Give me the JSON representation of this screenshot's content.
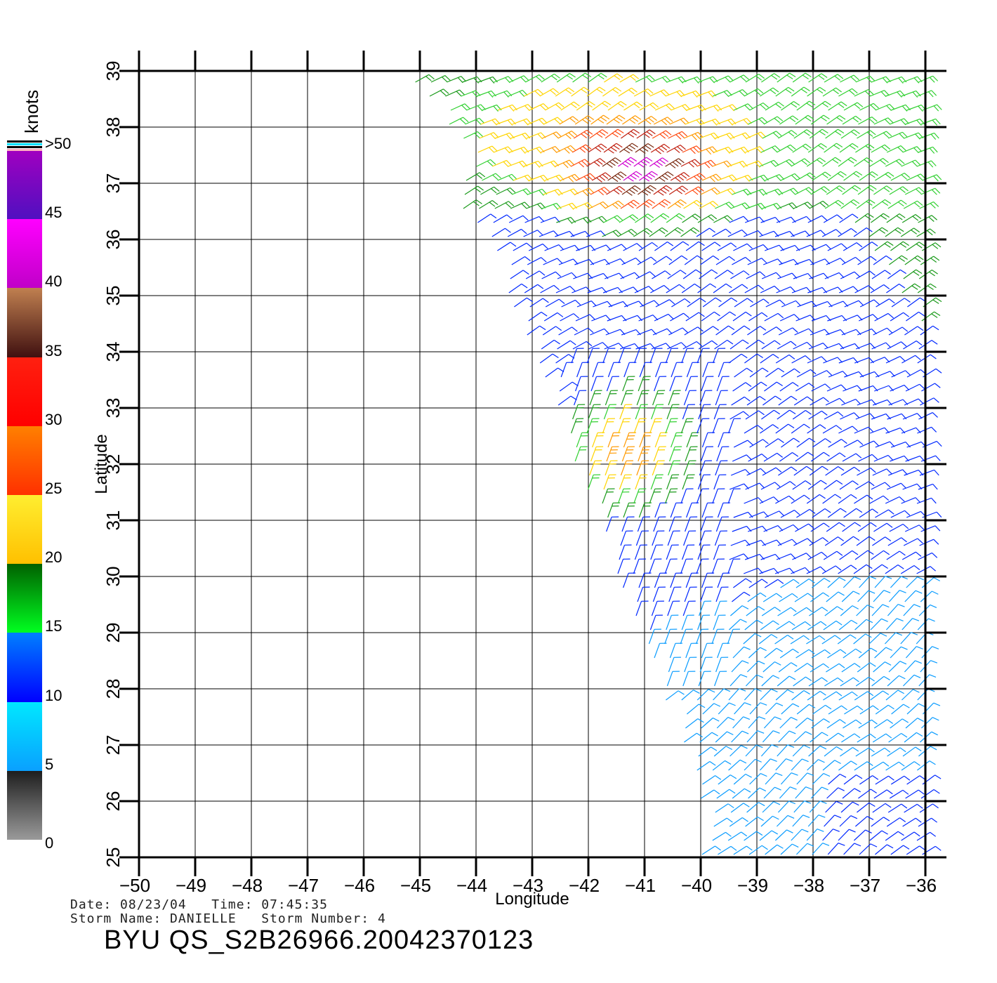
{
  "colorbar": {
    "unit_label": "knots",
    "segments": [
      {
        "from": 0,
        "to": 5,
        "top_color": "#1e1e1e",
        "bottom_color": "#9a9a9a"
      },
      {
        "from": 5,
        "to": 10,
        "top_color": "#00e8ff",
        "bottom_color": "#0aa0ff"
      },
      {
        "from": 10,
        "to": 15,
        "top_color": "#0080ff",
        "bottom_color": "#0000ff"
      },
      {
        "from": 15,
        "to": 20,
        "top_color": "#006000",
        "bottom_color": "#00ff20"
      },
      {
        "from": 20,
        "to": 25,
        "top_color": "#ffee30",
        "bottom_color": "#ffc000"
      },
      {
        "from": 25,
        "to": 30,
        "top_color": "#ff8000",
        "bottom_color": "#ff3000"
      },
      {
        "from": 30,
        "to": 35,
        "top_color": "#ff2010",
        "bottom_color": "#ff0000"
      },
      {
        "from": 35,
        "to": 40,
        "top_color": "#c08050",
        "bottom_color": "#401010"
      },
      {
        "from": 40,
        "to": 45,
        "top_color": "#ff00ff",
        "bottom_color": "#c000c8"
      },
      {
        "from": 45,
        "to": 50,
        "top_color": "#a000c0",
        "bottom_color": "#5010c0"
      }
    ],
    "tick_labels": [
      "0",
      "5",
      "10",
      "15",
      "20",
      "25",
      "30",
      "35",
      "40",
      "45",
      ">50"
    ]
  },
  "chart_data": {
    "type": "wind-barb-map",
    "xlabel": "Longitude",
    "ylabel": "Latitude",
    "xlim": [
      -50,
      -36
    ],
    "ylim": [
      25,
      39
    ],
    "x_ticks": [
      "−50",
      "−49",
      "−48",
      "−47",
      "−46",
      "−45",
      "−44",
      "−43",
      "−42",
      "−41",
      "−40",
      "−39",
      "−38",
      "−37",
      "−36"
    ],
    "y_ticks": [
      "25",
      "26",
      "27",
      "28",
      "29",
      "30",
      "31",
      "32",
      "33",
      "34",
      "35",
      "36",
      "37",
      "38",
      "39"
    ],
    "grid": true,
    "swath_polygon": [
      [
        -45.3,
        39
      ],
      [
        -36,
        39
      ],
      [
        -36,
        25
      ],
      [
        -40,
        25
      ],
      [
        -40,
        26.2
      ],
      [
        -43.8,
        36
      ],
      [
        -44.3,
        36.4
      ],
      [
        -44.1,
        37.6
      ],
      [
        -45.3,
        39
      ]
    ],
    "wind_zones": [
      {
        "region": "north-west swath",
        "speed_kt": [
          12,
          22
        ]
      },
      {
        "region": "storm core near 37N 41W",
        "speed_kt": [
          30,
          42
        ]
      },
      {
        "region": "band near 32N 41.5W",
        "speed_kt": [
          22,
          32
        ]
      },
      {
        "region": "south-east",
        "speed_kt": [
          5,
          13
        ]
      }
    ]
  },
  "info": {
    "date_line": "Date: 08/23/04   Time: 07:45:35",
    "storm_line": "Storm Name: DANIELLE   Storm Number: 4",
    "title": "BYU QS_S2B26966.20042370123"
  }
}
